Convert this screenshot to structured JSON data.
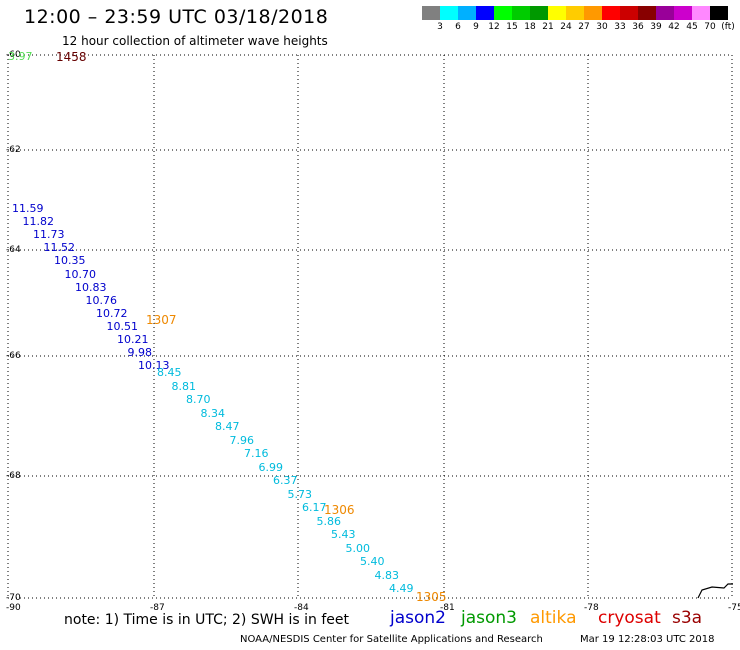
{
  "header": {
    "title": "12:00 – 23:59 UTC 03/18/2018",
    "subtitle": "12 hour collection of altimeter wave heights"
  },
  "colorbar": {
    "colors": [
      "#808080",
      "#00ffff",
      "#00b0ff",
      "#0000ff",
      "#00ff00",
      "#00cc00",
      "#009900",
      "#ffff00",
      "#ffcc00",
      "#ff9900",
      "#ff0000",
      "#cc0000",
      "#880000",
      "#990099",
      "#cc00cc",
      "#ff88ff",
      "#000000"
    ],
    "labels": [
      "3",
      "6",
      "9",
      "12",
      "15",
      "18",
      "21",
      "24",
      "27",
      "30",
      "33",
      "36",
      "39",
      "42",
      "45",
      "70",
      "(ft)"
    ]
  },
  "map": {
    "lat_labels": [
      "-60",
      "-62",
      "-64",
      "-66",
      "-68",
      "-70"
    ],
    "lon_labels": [
      "-90",
      "-87",
      "-84",
      "-81",
      "-78",
      "-75"
    ],
    "grid": true
  },
  "observations": {
    "top_value": {
      "value": "3.97",
      "color": "#55dd55"
    },
    "top_pass": {
      "value": "1458",
      "color": "#660000"
    },
    "jason2_track": [
      "11.59",
      "11.82",
      "11.73",
      "11.52",
      "10.35",
      "10.70",
      "10.83",
      "10.76",
      "10.72",
      "10.51",
      "10.21",
      "9.98",
      "10.13"
    ],
    "cyan_track": [
      "8.45",
      "8.81",
      "8.70",
      "8.34",
      "8.47",
      "7.96",
      "7.16",
      "6.99",
      "6.37",
      "5.73",
      "6.17",
      "5.86",
      "5.43",
      "5.00",
      "5.40",
      "4.83",
      "4.49"
    ],
    "pass_labels": [
      "1307",
      "1306",
      "1305"
    ],
    "colors": {
      "jason2": "#0000cc",
      "cyan": "#00bbdd",
      "pass": "#ee8800"
    }
  },
  "footer": {
    "note": "note: 1) Time is in UTC; 2) SWH is in feet",
    "missions": [
      {
        "label": "jason2",
        "color": "#0000cc"
      },
      {
        "label": "jason3",
        "color": "#009900"
      },
      {
        "label": "altika",
        "color": "#ff9900"
      },
      {
        "label": "cryosat",
        "color": "#dd0000"
      },
      {
        "label": "s3a",
        "color": "#990000"
      }
    ],
    "credit": "NOAA/NESDIS Center for Satellite Applications and Research",
    "run_time": "Mar 19 12:28:03 UTC 2018"
  }
}
